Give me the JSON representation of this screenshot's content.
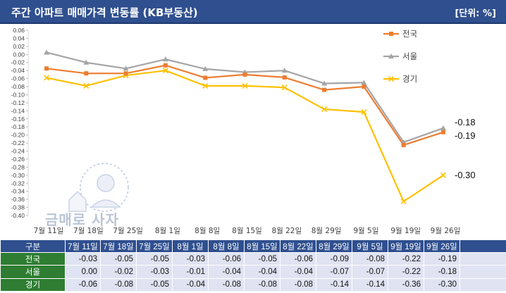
{
  "header": {
    "title": "주간 아파트 매매가격 변동률 (KB부동산)",
    "unit": "[단위: %]"
  },
  "chart_data": {
    "type": "line",
    "categories": [
      "7월 11일",
      "7월 18일",
      "7월 25일",
      "8월 1일",
      "8월 8일",
      "8월 15일",
      "8월 22일",
      "8월 29일",
      "9월 5일",
      "9월 19일",
      "9월 26일"
    ],
    "series": [
      {
        "name": "전국",
        "color": "#ed7d31",
        "marker": "square",
        "values": [
          -0.035,
          -0.047,
          -0.047,
          -0.027,
          -0.058,
          -0.05,
          -0.057,
          -0.088,
          -0.08,
          -0.225,
          -0.193
        ]
      },
      {
        "name": "서울",
        "color": "#a5a5a5",
        "marker": "triangle",
        "values": [
          0.005,
          -0.02,
          -0.035,
          -0.012,
          -0.036,
          -0.044,
          -0.04,
          -0.072,
          -0.07,
          -0.218,
          -0.183
        ]
      },
      {
        "name": "경기",
        "color": "#ffc000",
        "marker": "x",
        "values": [
          -0.058,
          -0.078,
          -0.052,
          -0.04,
          -0.078,
          -0.078,
          -0.082,
          -0.136,
          -0.143,
          -0.365,
          -0.3
        ]
      }
    ],
    "yticks": [
      "0.06",
      "0.04",
      "0.02",
      "0.00",
      "-0.02",
      "-0.04",
      "-0.06",
      "-0.08",
      "-0.10",
      "-0.12",
      "-0.14",
      "-0.16",
      "-0.18",
      "-0.20",
      "-0.22",
      "-0.24",
      "-0.26",
      "-0.28",
      "-0.30",
      "-0.32",
      "-0.34",
      "-0.36",
      "-0.38",
      "-0.40"
    ],
    "ylim": [
      -0.4,
      0.06
    ],
    "end_labels": [
      "-0.18",
      "-0.19",
      "-0.30"
    ],
    "legend_position": "right",
    "grid": false,
    "title": "",
    "xlabel": "",
    "ylabel": ""
  },
  "watermark": {
    "text": "금매로 사자"
  },
  "table": {
    "header": [
      "구분",
      "7월 11일",
      "7월 18일",
      "7월 25일",
      "8월 1일",
      "8월 8일",
      "8월 15일",
      "8월 22일",
      "8월 29일",
      "9월 5일",
      "9월 19일",
      "9월 26일",
      ""
    ],
    "rows": [
      {
        "label": "전국",
        "values": [
          "-0.03",
          "-0.05",
          "-0.05",
          "-0.03",
          "-0.06",
          "-0.05",
          "-0.06",
          "-0.09",
          "-0.08",
          "-0.22",
          "-0.19",
          ""
        ]
      },
      {
        "label": "서울",
        "values": [
          "0.00",
          "-0.02",
          "-0.03",
          "-0.01",
          "-0.04",
          "-0.04",
          "-0.04",
          "-0.07",
          "-0.07",
          "-0.22",
          "-0.18",
          ""
        ]
      },
      {
        "label": "경기",
        "values": [
          "-0.06",
          "-0.08",
          "-0.05",
          "-0.04",
          "-0.08",
          "-0.08",
          "-0.08",
          "-0.14",
          "-0.14",
          "-0.36",
          "-0.30",
          ""
        ]
      }
    ]
  }
}
